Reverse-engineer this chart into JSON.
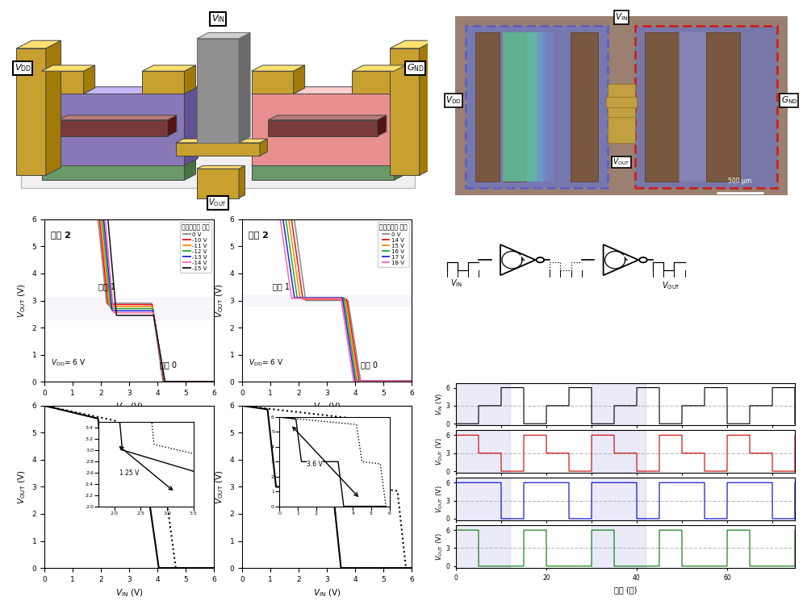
{
  "fig_width": 10.0,
  "fig_height": 7.45,
  "dpi": 100,
  "plot1_title": "논리 2",
  "plot1_legend_title": "프로그래밍 전압",
  "plot1_legend_labels": [
    "0 V",
    "-10 V",
    "-11 V",
    "-12 V",
    "-13 V",
    "-14 V",
    "-15 V"
  ],
  "plot1_legend_colors": [
    "#888888",
    "#EE1111",
    "#FF8800",
    "#22AA22",
    "#2222EE",
    "#FF66AA",
    "#111111"
  ],
  "plot2_title": "논리 2",
  "plot2_legend_title": "프로그래밍 전압",
  "plot2_legend_labels": [
    "0 V",
    "14 V",
    "15 V",
    "16 V",
    "17 V",
    "18 V"
  ],
  "plot2_legend_colors": [
    "#888888",
    "#EE1111",
    "#FF8800",
    "#22AA22",
    "#2222EE",
    "#FF66AA"
  ],
  "plot3_arrow_label": "1.25 V",
  "plot4_arrow_label": "3.6 V",
  "time_series_xlabel": "시간 (초)",
  "vin_color": "#000000",
  "vout1_color": "#CC0000",
  "vout2_color": "#0000CC",
  "vout3_color": "#007700",
  "gold_color": "#C8A030",
  "purple_body": "#8878B8",
  "pink_body": "#E89090",
  "green_channel": "#6A9A6A",
  "dark_red_gate": "#7A3A3A"
}
